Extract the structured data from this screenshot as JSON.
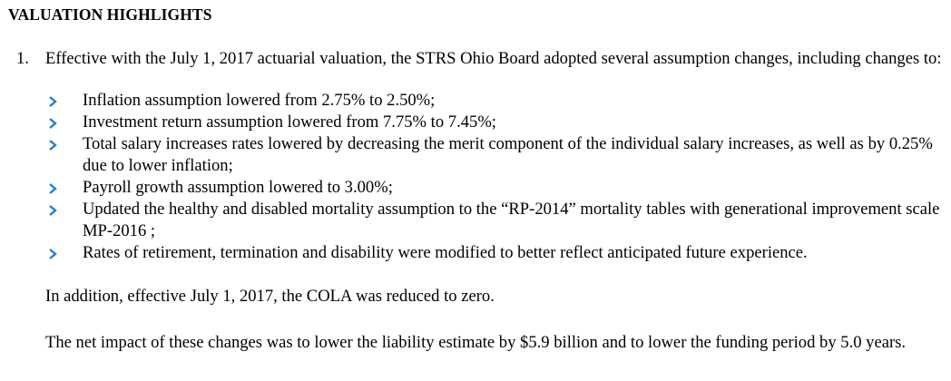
{
  "heading": "VALUATION HIGHLIGHTS",
  "item": {
    "number": "1.",
    "intro": "Effective with the July 1, 2017 actuarial valuation, the STRS Ohio Board adopted several assumption changes, including changes to:",
    "bullet_icon": "chevron-right-icon",
    "bullet_color": "#1f7ed6",
    "bullets": [
      "Inflation assumption lowered from 2.75% to 2.50%;",
      "Investment return assumption lowered from 7.75% to 7.45%;",
      "Total salary increases rates lowered by decreasing the merit component of the individual salary increases, as well as by 0.25% due to lower inflation;",
      "Payroll growth assumption lowered to 3.00%;",
      "Updated the healthy and disabled mortality assumption to the “RP-2014” mortality tables with generational improvement scale MP-2016 ;",
      "Rates of retirement, termination and disability were modified to better reflect anticipated future experience."
    ],
    "paragraph_cola": "In addition, effective July 1, 2017, the COLA was reduced to zero.",
    "paragraph_impact": "The net impact of these changes was to lower the liability estimate by $5.9 billion and to lower the funding period by 5.0 years."
  }
}
